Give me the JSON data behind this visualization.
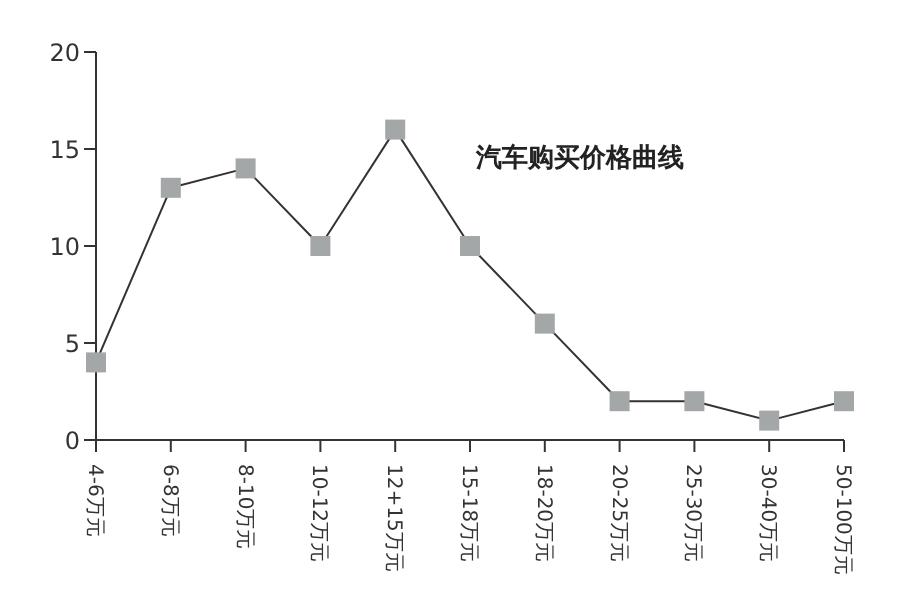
{
  "chart_data": {
    "type": "line",
    "title": "汽车购买价格曲线",
    "categories": [
      "4-6万元",
      "6-8万元",
      "8-10万元",
      "10-12万元",
      "12+15万元",
      "15-18万元",
      "18-20万元",
      "20-25万元",
      "25-30万元",
      "30-40万元",
      "50-100万元"
    ],
    "series": [
      {
        "color": "#a3a7a7",
        "values": [
          4,
          13,
          14,
          10,
          16,
          10,
          6,
          2,
          2,
          1,
          2
        ]
      }
    ],
    "ylim": [
      0,
      20
    ],
    "yticks": [
      0,
      5,
      10,
      15,
      20
    ],
    "grid": false,
    "legend": false,
    "marker": "square",
    "line_style": "solid"
  }
}
